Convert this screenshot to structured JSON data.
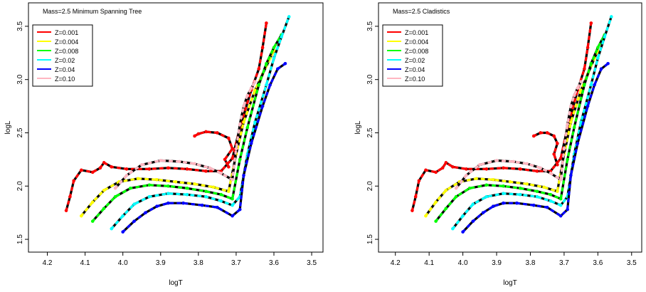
{
  "chart_data": [
    {
      "type": "line",
      "title": "Mass=2.5  Minimum Spanning Tree",
      "xlabel": "logT",
      "ylabel": "logL",
      "xlim": [
        4.25,
        3.47
      ],
      "ylim": [
        1.38,
        3.72
      ],
      "xticks": [
        "4.2",
        "4.1",
        "4.0",
        "3.9",
        "3.8",
        "3.7",
        "3.6",
        "3.5"
      ],
      "yticks": [
        "1.5",
        "2.0",
        "2.5",
        "3.0",
        "3.5"
      ],
      "legend_position": "top-left",
      "series": [
        {
          "name": "Z=0.001",
          "color": "#ff0000",
          "x": [
            4.15,
            4.14,
            4.13,
            4.11,
            4.08,
            4.06,
            4.05,
            4.03,
            3.99,
            3.93,
            3.88,
            3.83,
            3.78,
            3.74,
            3.71,
            3.69,
            3.66,
            3.64,
            3.63,
            3.62
          ],
          "y": [
            1.77,
            1.9,
            2.05,
            2.15,
            2.13,
            2.17,
            2.22,
            2.18,
            2.16,
            2.16,
            2.17,
            2.16,
            2.14,
            2.14,
            2.26,
            2.55,
            2.9,
            3.1,
            3.3,
            3.53
          ]
        },
        {
          "name": "Z=0.004",
          "color": "#ffff00",
          "x": [
            4.11,
            4.08,
            4.05,
            4.01,
            3.96,
            3.91,
            3.86,
            3.81,
            3.76,
            3.72,
            3.7,
            3.68,
            3.65,
            3.63,
            3.61,
            3.6
          ],
          "y": [
            1.72,
            1.85,
            1.96,
            2.04,
            2.07,
            2.06,
            2.04,
            2.02,
            1.99,
            1.95,
            2.3,
            2.6,
            2.9,
            3.05,
            3.2,
            3.27
          ]
        },
        {
          "name": "Z=0.008",
          "color": "#00ff00",
          "x": [
            4.08,
            4.05,
            4.02,
            3.98,
            3.93,
            3.88,
            3.83,
            3.78,
            3.74,
            3.71,
            3.69,
            3.67,
            3.64,
            3.62,
            3.6,
            3.58
          ],
          "y": [
            1.67,
            1.79,
            1.9,
            1.98,
            2.01,
            2.0,
            1.98,
            1.95,
            1.92,
            1.88,
            2.25,
            2.55,
            2.95,
            3.15,
            3.3,
            3.42
          ]
        },
        {
          "name": "Z=0.02",
          "color": "#00ffff",
          "x": [
            4.03,
            4.0,
            3.97,
            3.93,
            3.88,
            3.83,
            3.78,
            3.74,
            3.71,
            3.69,
            3.67,
            3.65,
            3.62,
            3.6,
            3.58,
            3.56
          ],
          "y": [
            1.6,
            1.72,
            1.83,
            1.9,
            1.93,
            1.92,
            1.9,
            1.86,
            1.82,
            1.9,
            2.3,
            2.6,
            2.95,
            3.2,
            3.4,
            3.59
          ]
        },
        {
          "name": "Z=0.04",
          "color": "#0000ff",
          "x": [
            4.0,
            3.97,
            3.94,
            3.91,
            3.88,
            3.84,
            3.79,
            3.75,
            3.71,
            3.69,
            3.68,
            3.66,
            3.63,
            3.61,
            3.59,
            3.57
          ],
          "y": [
            1.57,
            1.67,
            1.75,
            1.81,
            1.84,
            1.84,
            1.82,
            1.8,
            1.72,
            1.78,
            2.1,
            2.4,
            2.75,
            2.95,
            3.1,
            3.15
          ]
        },
        {
          "name": "Z=0.10",
          "color": "#ffb6c1",
          "x": [
            4.02,
            3.99,
            3.95,
            3.9,
            3.85,
            3.81,
            3.77,
            3.74,
            3.71,
            3.7,
            3.69,
            3.68,
            3.67,
            3.66,
            3.65
          ],
          "y": [
            1.98,
            2.1,
            2.2,
            2.24,
            2.23,
            2.21,
            2.17,
            2.12,
            2.06,
            2.35,
            2.58,
            2.75,
            2.85,
            2.92,
            2.98
          ]
        },
        {
          "name": "",
          "color": "#ff0000",
          "x": [
            3.81,
            3.8,
            3.78,
            3.75,
            3.72,
            3.71,
            3.73,
            3.72
          ],
          "y": [
            2.47,
            2.49,
            2.51,
            2.5,
            2.45,
            2.35,
            2.25,
            2.18
          ]
        }
      ]
    },
    {
      "type": "line",
      "title": "Mass=2.5  Cladistics",
      "xlabel": "logT",
      "ylabel": "logL",
      "xlim": [
        4.25,
        3.47
      ],
      "ylim": [
        1.38,
        3.72
      ],
      "xticks": [
        "4.2",
        "4.1",
        "4.0",
        "3.9",
        "3.8",
        "3.7",
        "3.6",
        "3.5"
      ],
      "yticks": [
        "1.5",
        "2.0",
        "2.5",
        "3.0",
        "3.5"
      ],
      "legend_position": "top-left",
      "series": [
        {
          "name": "Z=0.001",
          "color": "#ff0000",
          "x": [
            4.15,
            4.14,
            4.13,
            4.11,
            4.08,
            4.06,
            4.05,
            4.03,
            3.99,
            3.93,
            3.88,
            3.83,
            3.78,
            3.74,
            3.71,
            3.69,
            3.66,
            3.64,
            3.63,
            3.62
          ],
          "y": [
            1.77,
            1.9,
            2.05,
            2.15,
            2.13,
            2.17,
            2.22,
            2.18,
            2.16,
            2.16,
            2.17,
            2.16,
            2.14,
            2.14,
            2.26,
            2.55,
            2.9,
            3.1,
            3.3,
            3.53
          ]
        },
        {
          "name": "Z=0.004",
          "color": "#ffff00",
          "x": [
            4.11,
            4.08,
            4.05,
            4.01,
            3.96,
            3.91,
            3.86,
            3.81,
            3.76,
            3.72,
            3.7,
            3.68,
            3.65,
            3.63,
            3.61,
            3.6
          ],
          "y": [
            1.72,
            1.85,
            1.96,
            2.04,
            2.07,
            2.06,
            2.04,
            2.02,
            1.99,
            1.95,
            2.3,
            2.6,
            2.9,
            3.05,
            3.2,
            3.27
          ]
        },
        {
          "name": "Z=0.008",
          "color": "#00ff00",
          "x": [
            4.08,
            4.05,
            4.02,
            3.98,
            3.93,
            3.88,
            3.83,
            3.78,
            3.74,
            3.71,
            3.69,
            3.67,
            3.64,
            3.62,
            3.6,
            3.58
          ],
          "y": [
            1.67,
            1.79,
            1.9,
            1.98,
            2.01,
            2.0,
            1.98,
            1.95,
            1.92,
            1.88,
            2.25,
            2.55,
            2.95,
            3.15,
            3.3,
            3.42
          ]
        },
        {
          "name": "Z=0.02",
          "color": "#00ffff",
          "x": [
            4.03,
            4.0,
            3.97,
            3.93,
            3.88,
            3.83,
            3.78,
            3.74,
            3.71,
            3.69,
            3.67,
            3.65,
            3.62,
            3.6,
            3.58,
            3.56
          ],
          "y": [
            1.6,
            1.72,
            1.83,
            1.9,
            1.93,
            1.92,
            1.9,
            1.86,
            1.82,
            1.9,
            2.3,
            2.6,
            2.95,
            3.2,
            3.4,
            3.59
          ]
        },
        {
          "name": "Z=0.04",
          "color": "#0000ff",
          "x": [
            4.0,
            3.97,
            3.94,
            3.91,
            3.88,
            3.84,
            3.79,
            3.75,
            3.71,
            3.69,
            3.68,
            3.66,
            3.63,
            3.61,
            3.59,
            3.57
          ],
          "y": [
            1.57,
            1.67,
            1.75,
            1.81,
            1.84,
            1.84,
            1.82,
            1.8,
            1.72,
            1.78,
            2.1,
            2.4,
            2.75,
            2.95,
            3.1,
            3.15
          ]
        },
        {
          "name": "Z=0.10",
          "color": "#ffb6c1",
          "x": [
            4.02,
            3.99,
            3.95,
            3.9,
            3.85,
            3.81,
            3.77,
            3.74,
            3.71,
            3.7,
            3.69,
            3.68,
            3.67,
            3.66,
            3.65
          ],
          "y": [
            1.98,
            2.1,
            2.2,
            2.24,
            2.23,
            2.21,
            2.17,
            2.12,
            2.06,
            2.35,
            2.58,
            2.75,
            2.85,
            2.92,
            2.98
          ]
        },
        {
          "name": "",
          "color": "#ff0000",
          "x": [
            3.79,
            3.77,
            3.75,
            3.73,
            3.72,
            3.73,
            3.72
          ],
          "y": [
            2.47,
            2.5,
            2.5,
            2.47,
            2.4,
            2.3,
            2.2
          ]
        }
      ]
    }
  ]
}
